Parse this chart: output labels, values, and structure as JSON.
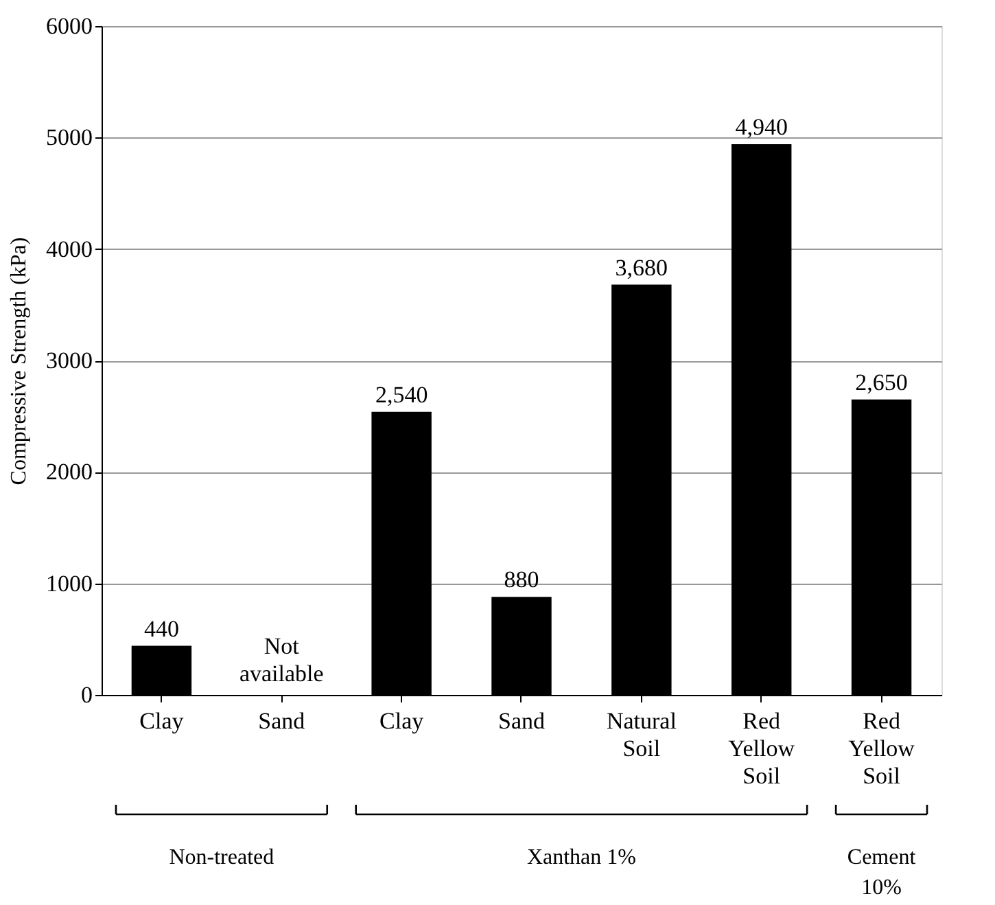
{
  "chart_data": {
    "type": "bar",
    "ylabel": "Compressive Strength (kPa)",
    "categories": [
      "Clay",
      "Sand",
      "Clay",
      "Sand",
      "Natural Soil",
      "Red Yellow Soil",
      "Red Yellow Soil"
    ],
    "values": [
      440,
      null,
      2540,
      880,
      3680,
      4940,
      2650
    ],
    "value_labels": [
      "440",
      "Not available",
      "2,540",
      "880",
      "3,680",
      "4,940",
      "2,650"
    ],
    "color": "#000000",
    "ylim": [
      0,
      6000
    ],
    "yticks": [
      0,
      1000,
      2000,
      3000,
      4000,
      5000,
      6000
    ],
    "grid": "y",
    "annotations": [
      "Non-treated",
      "Xanthan 1%",
      "Cement 10%"
    ]
  }
}
